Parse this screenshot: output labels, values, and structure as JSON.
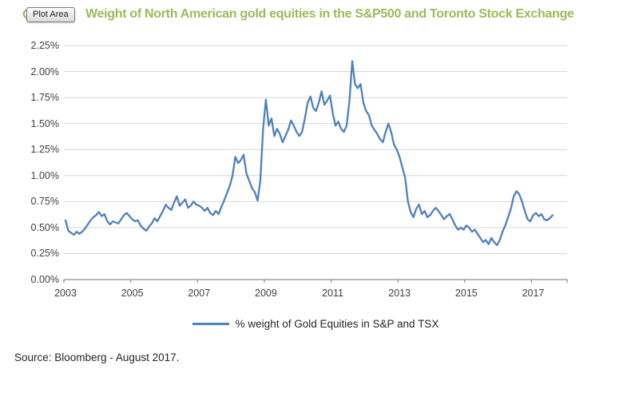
{
  "title": {
    "prefix": "C",
    "text": "Weight of North American gold equities in the S&P500 and Toronto Stock Exchange",
    "color": "#9BBB59"
  },
  "tooltip": {
    "label": "Plot Area"
  },
  "legend": {
    "label": "% weight of Gold Equities in S&P and TSX",
    "swatch_color": "#4F81BD"
  },
  "source": {
    "text": "Source: Bloomberg - August 2017."
  },
  "colors": {
    "line": "#4F81BD",
    "gridline": "#D6D6D6",
    "axis": "#8C8C8C",
    "tick_text": "#3F3F3F"
  },
  "chart_data": {
    "type": "line",
    "title": "Weight of North American gold equities in the S&P500 and Toronto Stock Exchange",
    "xlabel": "",
    "ylabel": "",
    "grid": true,
    "legend_position": "bottom",
    "y_axis": {
      "min": 0,
      "max": 2.25,
      "tick_step": 0.25,
      "tick_labels": [
        "0.00%",
        "0.25%",
        "0.50%",
        "0.75%",
        "1.00%",
        "1.25%",
        "1.50%",
        "1.75%",
        "2.00%",
        "2.25%"
      ]
    },
    "x_axis": {
      "min": 2003,
      "max": 2018.05,
      "ticks": [
        2003,
        2005,
        2007,
        2009,
        2011,
        2013,
        2015,
        2017
      ]
    },
    "series": [
      {
        "name": "% weight of Gold Equities in S&P and TSX",
        "color": "#4F81BD",
        "unit": "percent",
        "frequency": "monthly",
        "start": "2003-01",
        "end": "2017-08",
        "values": [
          0.57,
          0.47,
          0.45,
          0.43,
          0.46,
          0.44,
          0.46,
          0.49,
          0.53,
          0.57,
          0.6,
          0.62,
          0.65,
          0.61,
          0.63,
          0.56,
          0.53,
          0.56,
          0.55,
          0.54,
          0.58,
          0.62,
          0.64,
          0.61,
          0.58,
          0.56,
          0.57,
          0.52,
          0.49,
          0.47,
          0.51,
          0.54,
          0.59,
          0.56,
          0.61,
          0.66,
          0.72,
          0.69,
          0.67,
          0.74,
          0.8,
          0.71,
          0.74,
          0.77,
          0.69,
          0.71,
          0.75,
          0.72,
          0.71,
          0.69,
          0.66,
          0.69,
          0.64,
          0.62,
          0.66,
          0.63,
          0.7,
          0.76,
          0.83,
          0.9,
          1.0,
          1.18,
          1.12,
          1.15,
          1.2,
          1.02,
          0.95,
          0.88,
          0.84,
          0.76,
          0.95,
          1.45,
          1.73,
          1.48,
          1.55,
          1.38,
          1.45,
          1.4,
          1.32,
          1.38,
          1.44,
          1.53,
          1.48,
          1.42,
          1.38,
          1.42,
          1.55,
          1.7,
          1.76,
          1.65,
          1.62,
          1.7,
          1.81,
          1.68,
          1.72,
          1.77,
          1.6,
          1.48,
          1.52,
          1.45,
          1.42,
          1.48,
          1.72,
          2.1,
          1.88,
          1.84,
          1.88,
          1.7,
          1.62,
          1.58,
          1.48,
          1.44,
          1.4,
          1.35,
          1.32,
          1.42,
          1.5,
          1.42,
          1.3,
          1.25,
          1.18,
          1.08,
          0.98,
          0.75,
          0.65,
          0.6,
          0.68,
          0.72,
          0.63,
          0.66,
          0.6,
          0.62,
          0.66,
          0.69,
          0.66,
          0.62,
          0.58,
          0.61,
          0.63,
          0.58,
          0.52,
          0.48,
          0.5,
          0.48,
          0.52,
          0.5,
          0.46,
          0.48,
          0.44,
          0.4,
          0.36,
          0.38,
          0.34,
          0.4,
          0.36,
          0.33,
          0.38,
          0.46,
          0.52,
          0.6,
          0.68,
          0.8,
          0.85,
          0.82,
          0.75,
          0.66,
          0.58,
          0.56,
          0.62,
          0.64,
          0.61,
          0.63,
          0.58,
          0.57,
          0.59,
          0.62
        ]
      }
    ]
  }
}
